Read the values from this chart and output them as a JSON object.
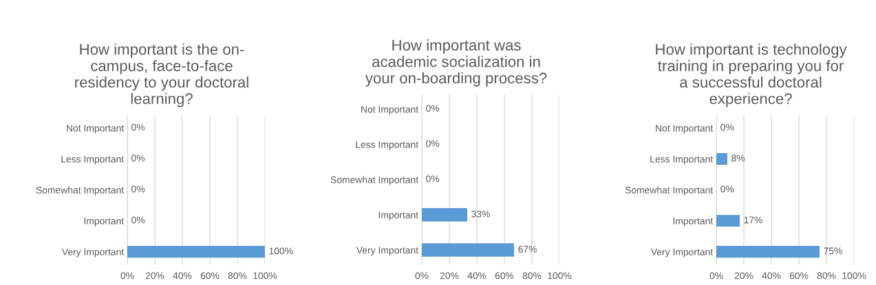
{
  "chart_data": [
    {
      "type": "bar",
      "orientation": "horizontal",
      "title": "How important is the on-\ncampus, face-to-face\nresidency to your doctoral\nlearning?",
      "categories": [
        "Not Important",
        "Less Important",
        "Somewhat Important",
        "Important",
        "Very Important"
      ],
      "values": [
        0,
        0,
        0,
        0,
        100
      ],
      "value_labels": [
        "0%",
        "0%",
        "0%",
        "0%",
        "100%"
      ],
      "color": "#5b9bd5",
      "xlim": [
        0,
        100
      ],
      "xticks": [
        {
          "value": 0,
          "label": "0%"
        },
        {
          "value": 20,
          "label": "20%"
        },
        {
          "value": 40,
          "label": "40%"
        },
        {
          "value": 60,
          "label": "60%"
        },
        {
          "value": 80,
          "label": "80%"
        },
        {
          "value": 100,
          "label": "100%"
        }
      ],
      "grid": "x",
      "legend": false
    },
    {
      "type": "bar",
      "orientation": "horizontal",
      "title": "How important was\nacademic socialization in\nyour on-boarding process?",
      "categories": [
        "Not Important",
        "Less Important",
        "Somewhat Important",
        "Important",
        "Very Important"
      ],
      "values": [
        0,
        0,
        0,
        33,
        67
      ],
      "value_labels": [
        "0%",
        "0%",
        "0%",
        "33%",
        "67%"
      ],
      "color": "#5b9bd5",
      "xlim": [
        0,
        100
      ],
      "xticks": [
        {
          "value": 0,
          "label": "0%"
        },
        {
          "value": 20,
          "label": "20%"
        },
        {
          "value": 40,
          "label": "40%"
        },
        {
          "value": 60,
          "label": "60%"
        },
        {
          "value": 80,
          "label": "80%"
        },
        {
          "value": 100,
          "label": "100%"
        }
      ],
      "grid": "x",
      "legend": false
    },
    {
      "type": "bar",
      "orientation": "horizontal",
      "title": "How important is technology\ntraining in preparing you for\na successful doctoral\nexperience?",
      "categories": [
        "Not Important",
        "Less Important",
        "Somewhat Important",
        "Important",
        "Very Important"
      ],
      "values": [
        0,
        8,
        0,
        17,
        75
      ],
      "value_labels": [
        "0%",
        "8%",
        "0%",
        "17%",
        "75%"
      ],
      "color": "#5b9bd5",
      "xlim": [
        0,
        100
      ],
      "xticks": [
        {
          "value": 0,
          "label": "0%"
        },
        {
          "value": 20,
          "label": "20%"
        },
        {
          "value": 40,
          "label": "40%"
        },
        {
          "value": 60,
          "label": "60%"
        },
        {
          "value": 80,
          "label": "80%"
        },
        {
          "value": 100,
          "label": "100%"
        }
      ],
      "grid": "x",
      "legend": false
    }
  ]
}
